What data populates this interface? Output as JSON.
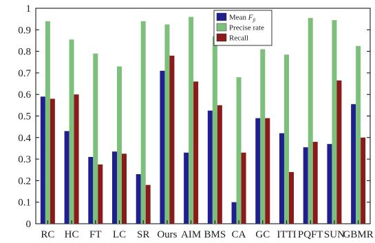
{
  "chart_data": {
    "type": "bar",
    "title": "",
    "xlabel": "",
    "ylabel": "",
    "ylim": [
      0,
      1
    ],
    "yticks": [
      "0",
      "0.1",
      "0.2",
      "0.3",
      "0.4",
      "0.5",
      "0.6",
      "0.7",
      "0.8",
      "0.9",
      "1"
    ],
    "grid": false,
    "legend_position": "top-center",
    "categories": [
      "RC",
      "HC",
      "FT",
      "LC",
      "SR",
      "Ours",
      "AIM",
      "BMS",
      "CA",
      "GC",
      "ITTI",
      "PQFT",
      "SUN",
      "GBMR"
    ],
    "series": [
      {
        "name": "Mean",
        "name_subscript": "β",
        "color": "#1f1f8f",
        "values": [
          0.59,
          0.43,
          0.31,
          0.335,
          0.23,
          0.71,
          0.33,
          0.525,
          0.1,
          0.49,
          0.42,
          0.355,
          0.37,
          0.555
        ]
      },
      {
        "name": "Precise rate",
        "color": "#7cc07c",
        "values": [
          0.94,
          0.855,
          0.79,
          0.73,
          0.94,
          0.925,
          0.96,
          0.87,
          0.68,
          0.81,
          0.785,
          0.955,
          0.945,
          0.825
        ]
      },
      {
        "name": "Recall",
        "color": "#8b1a1a",
        "values": [
          0.58,
          0.6,
          0.275,
          0.325,
          0.18,
          0.78,
          0.66,
          0.55,
          0.33,
          0.49,
          0.24,
          0.38,
          0.665,
          0.4
        ]
      }
    ]
  }
}
